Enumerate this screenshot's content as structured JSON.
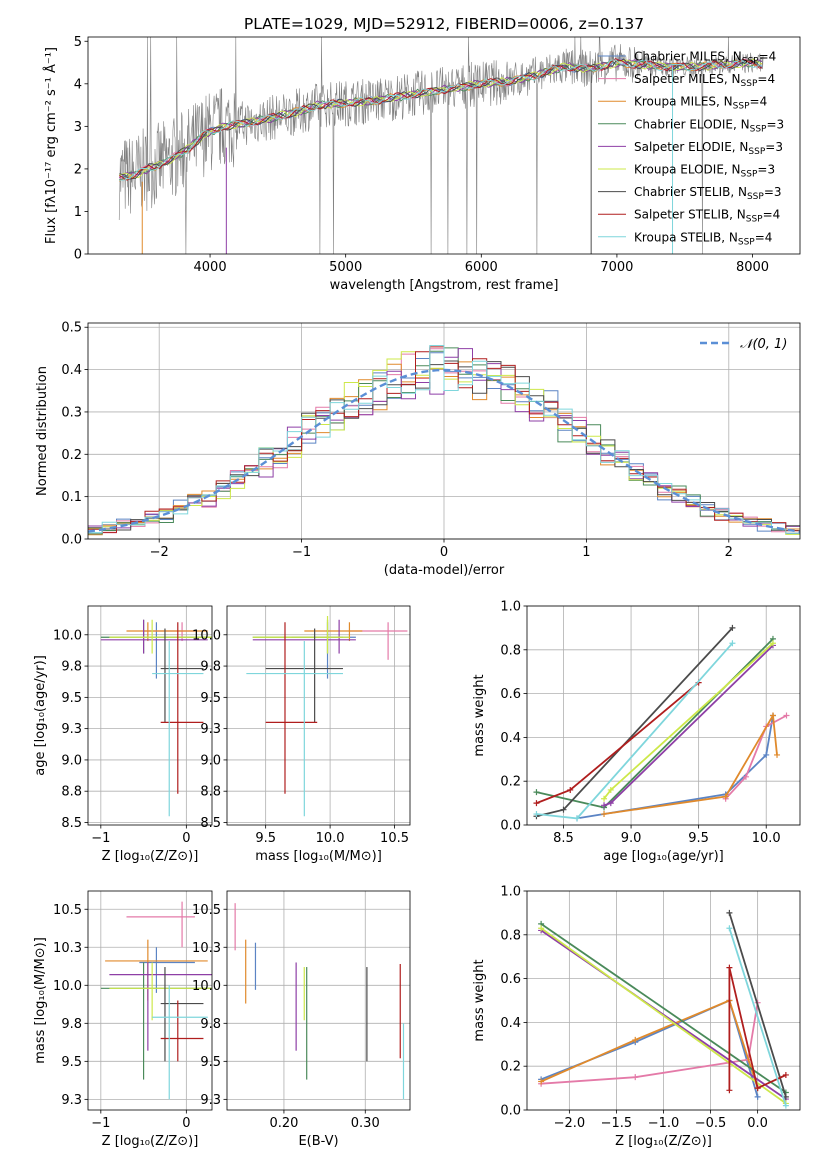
{
  "figure": {
    "title": "PLATE=1029, MJD=52912, FIBERID=0006, z=0.137"
  },
  "chart_data": [
    {
      "id": "spectrum",
      "type": "line",
      "xlabel": "wavelength [Angstrom, rest frame]",
      "ylabel": "Flux [fλ10⁻¹⁷ erg cm⁻² s⁻¹ Å⁻¹]",
      "xlim": [
        3100,
        8350
      ],
      "ylim": [
        0,
        5.1
      ],
      "xticks": [
        4000,
        5000,
        6000,
        7000,
        8000
      ],
      "yticks": [
        0,
        1,
        2,
        3,
        4,
        5
      ],
      "grid": false,
      "legend_position": "upper-right",
      "data_series": {
        "name": "",
        "color": "#808080"
      },
      "continuum_x": [
        3330,
        3450,
        3500,
        3700,
        3850,
        3950,
        4100,
        4300,
        4600,
        4800,
        5000,
        5200,
        5400,
        5600,
        5800,
        6000,
        6200,
        6400,
        6600,
        6800,
        7000,
        7200,
        7400,
        7600,
        7800,
        8000,
        8080
      ],
      "continuum_y": [
        1.8,
        1.85,
        1.95,
        2.2,
        2.5,
        2.8,
        3.0,
        3.1,
        3.3,
        3.5,
        3.55,
        3.6,
        3.7,
        3.8,
        3.9,
        4.0,
        4.05,
        4.2,
        4.4,
        4.35,
        4.5,
        4.45,
        4.4,
        4.4,
        4.45,
        4.5,
        4.45
      ],
      "series": [
        {
          "name": "Chabrier MILES, NSSP=4",
          "label": "Chabrier MILES, N",
          "sub": "SSP",
          "suffix": "=4",
          "color": "#5b84c4"
        },
        {
          "name": "Salpeter MILES, NSSP=4",
          "label": "Salpeter MILES, N",
          "sub": "SSP",
          "suffix": "=4",
          "color": "#e47aa8"
        },
        {
          "name": "Kroupa MILES, NSSP=4",
          "label": "Kroupa MILES, N",
          "sub": "SSP",
          "suffix": "=4",
          "color": "#e08a2c"
        },
        {
          "name": "Chabrier ELODIE, NSSP=3",
          "label": "Chabrier ELODIE, N",
          "sub": "SSP",
          "suffix": "=3",
          "color": "#4a8a5a"
        },
        {
          "name": "Salpeter ELODIE, NSSP=3",
          "label": "Salpeter ELODIE, N",
          "sub": "SSP",
          "suffix": "=3",
          "color": "#8e3fa6"
        },
        {
          "name": "Kroupa ELODIE, NSSP=3",
          "label": "Kroupa ELODIE, N",
          "sub": "SSP",
          "suffix": "=3",
          "color": "#cde84a"
        },
        {
          "name": "Chabrier STELIB, NSSP=3",
          "label": "Chabrier STELIB, N",
          "sub": "SSP",
          "suffix": "=3",
          "color": "#4b4b4b"
        },
        {
          "name": "Salpeter STELIB, NSSP=4",
          "label": "Salpeter STELIB, N",
          "sub": "SSP",
          "suffix": "=4",
          "color": "#b01e1e"
        },
        {
          "name": "Kroupa STELIB, NSSP=4",
          "label": "Kroupa STELIB, N",
          "sub": "SSP",
          "suffix": "=4",
          "color": "#7fd6dc"
        }
      ]
    },
    {
      "id": "residuals",
      "type": "step-histogram",
      "xlabel": "(data-model)/error",
      "ylabel": "Normed distribution",
      "xlim": [
        -2.5,
        2.5
      ],
      "ylim": [
        0,
        0.51
      ],
      "xticks": [
        -2,
        -1,
        0,
        1,
        2
      ],
      "yticks": [
        0,
        0.1,
        0.2,
        0.3,
        0.4,
        0.5
      ],
      "grid": true,
      "legend": {
        "label": "𝒩(0, 1)",
        "position": "upper-right",
        "color": "#5b8fd6"
      },
      "gaussian": {
        "mean": 0,
        "sigma": 1
      }
    },
    {
      "id": "age_vs_Z",
      "type": "errorbar",
      "xlabel": "Z [log₁₀(Z/Z⊙)]",
      "ylabel": "age  [log₁₀(age/yr)]",
      "xlim": [
        -1.15,
        0.3
      ],
      "ylim": [
        8.48,
        10.23
      ],
      "xticks": [
        -1,
        0
      ],
      "yticks": [
        8.5,
        8.75,
        9.0,
        9.25,
        9.5,
        9.75,
        10.0
      ],
      "grid": true,
      "points": [
        {
          "x": -0.35,
          "y": 9.98,
          "xlo": -0.35,
          "xhi": 0.25,
          "ylo": 9.65,
          "yhi": 10.1
        },
        {
          "x": -0.05,
          "y": 10.03,
          "xlo": -0.5,
          "xhi": 0.1,
          "ylo": 9.95,
          "yhi": 10.1
        },
        {
          "x": -0.45,
          "y": 10.03,
          "xlo": -0.7,
          "xhi": 0.25,
          "ylo": 9.95,
          "yhi": 10.1
        },
        {
          "x": -0.5,
          "y": 9.98,
          "xlo": -1.0,
          "xhi": 0.3,
          "ylo": 9.85,
          "yhi": 10.12
        },
        {
          "x": -0.5,
          "y": 9.96,
          "xlo": -1.0,
          "xhi": 0.25,
          "ylo": 9.85,
          "yhi": 10.12
        },
        {
          "x": -0.4,
          "y": 9.98,
          "xlo": -0.9,
          "xhi": 0.3,
          "ylo": 9.85,
          "yhi": 10.12
        },
        {
          "x": -0.25,
          "y": 9.73,
          "xlo": -0.3,
          "xhi": 0.2,
          "ylo": 9.3,
          "yhi": 10.05
        },
        {
          "x": -0.1,
          "y": 9.3,
          "xlo": -0.3,
          "xhi": 0.2,
          "ylo": 8.73,
          "yhi": 10.1
        },
        {
          "x": -0.2,
          "y": 9.69,
          "xlo": -0.4,
          "xhi": 0.2,
          "ylo": 8.55,
          "yhi": 9.95
        }
      ]
    },
    {
      "id": "age_vs_mass",
      "type": "errorbar",
      "xlabel": "mass [log₁₀(M/M⊙)]",
      "ylabel": "",
      "xlim": [
        9.2,
        10.62
      ],
      "ylim": [
        8.48,
        10.23
      ],
      "xticks": [
        9.5,
        10.0,
        10.5
      ],
      "yticks": [
        8.5,
        8.75,
        9.0,
        9.25,
        9.5,
        9.75,
        10.0
      ],
      "grid": true,
      "points": [
        {
          "x": 9.98,
          "y": 9.98,
          "xlo": 9.7,
          "xhi": 10.2,
          "ylo": 9.65,
          "yhi": 10.1
        },
        {
          "x": 10.45,
          "y": 10.03,
          "xlo": 10.15,
          "xhi": 10.6,
          "ylo": 9.8,
          "yhi": 10.1
        },
        {
          "x": 10.15,
          "y": 10.03,
          "xlo": 9.8,
          "xhi": 10.25,
          "ylo": 9.95,
          "yhi": 10.1
        },
        {
          "x": 9.98,
          "y": 9.98,
          "xlo": 9.4,
          "xhi": 10.1,
          "ylo": 9.85,
          "yhi": 10.12
        },
        {
          "x": 10.07,
          "y": 9.96,
          "xlo": 9.4,
          "xhi": 10.2,
          "ylo": 9.85,
          "yhi": 10.12
        },
        {
          "x": 9.98,
          "y": 9.98,
          "xlo": 9.4,
          "xhi": 10.15,
          "ylo": 9.85,
          "yhi": 10.15
        },
        {
          "x": 9.88,
          "y": 9.73,
          "xlo": 9.5,
          "xhi": 10.1,
          "ylo": 9.3,
          "yhi": 10.05
        },
        {
          "x": 9.65,
          "y": 9.3,
          "xlo": 9.5,
          "xhi": 9.9,
          "ylo": 8.73,
          "yhi": 10.1
        },
        {
          "x": 9.8,
          "y": 9.69,
          "xlo": 9.35,
          "xhi": 10.1,
          "ylo": 8.55,
          "yhi": 9.95
        }
      ]
    },
    {
      "id": "massweight_vs_age",
      "type": "line",
      "xlabel": "age  [log₁₀(age/yr)]",
      "ylabel": "mass weight",
      "xlim": [
        8.23,
        10.25
      ],
      "ylim": [
        0,
        1.0
      ],
      "xticks": [
        8.5,
        9.0,
        9.5,
        10.0
      ],
      "yticks": [
        0.0,
        0.2,
        0.4,
        0.6,
        0.8,
        1.0
      ],
      "grid": true,
      "series": [
        {
          "x": [
            8.6,
            9.7,
            10.0,
            10.05
          ],
          "y": [
            0.03,
            0.14,
            0.32,
            0.5
          ]
        },
        {
          "x": [
            9.7,
            9.85,
            10.0,
            10.15
          ],
          "y": [
            0.12,
            0.22,
            0.45,
            0.5
          ]
        },
        {
          "x": [
            8.8,
            9.7,
            10.05,
            10.08
          ],
          "y": [
            0.05,
            0.13,
            0.5,
            0.32
          ]
        },
        {
          "x": [
            8.3,
            8.8,
            10.05
          ],
          "y": [
            0.15,
            0.08,
            0.85
          ]
        },
        {
          "x": [
            8.8,
            8.85,
            10.05
          ],
          "y": [
            0.09,
            0.1,
            0.82
          ]
        },
        {
          "x": [
            8.8,
            8.85,
            10.05
          ],
          "y": [
            0.12,
            0.16,
            0.83
          ]
        },
        {
          "x": [
            8.3,
            8.5,
            9.75
          ],
          "y": [
            0.04,
            0.07,
            0.9
          ]
        },
        {
          "x": [
            8.3,
            8.55,
            9.5
          ],
          "y": [
            0.1,
            0.16,
            0.65
          ]
        },
        {
          "x": [
            8.3,
            8.6,
            9.75
          ],
          "y": [
            0.05,
            0.03,
            0.83
          ]
        }
      ]
    },
    {
      "id": "mass_vs_Z",
      "type": "errorbar",
      "xlabel": "Z [log₁₀(Z/Z⊙)]",
      "ylabel": "mass [log₁₀(M/M⊙)]",
      "xlim": [
        -1.15,
        0.3
      ],
      "ylim": [
        9.18,
        10.62
      ],
      "xticks": [
        -1,
        0
      ],
      "yticks": [
        9.25,
        9.5,
        9.75,
        10.0,
        10.25,
        10.5
      ],
      "grid": true,
      "points": [
        {
          "x": -0.35,
          "y": 10.15,
          "xlo": -0.55,
          "xhi": 0.1,
          "ylo": 9.95,
          "yhi": 10.25
        },
        {
          "x": -0.05,
          "y": 10.45,
          "xlo": -0.7,
          "xhi": 0.1,
          "ylo": 10.25,
          "yhi": 10.55
        },
        {
          "x": -0.45,
          "y": 10.16,
          "xlo": -0.95,
          "xhi": 0.25,
          "ylo": 9.9,
          "yhi": 10.3
        },
        {
          "x": -0.5,
          "y": 9.98,
          "xlo": -1.0,
          "xhi": 0.3,
          "ylo": 9.38,
          "yhi": 10.15
        },
        {
          "x": -0.45,
          "y": 10.07,
          "xlo": -0.9,
          "xhi": 0.3,
          "ylo": 9.57,
          "yhi": 10.15
        },
        {
          "x": -0.4,
          "y": 9.98,
          "xlo": -0.9,
          "xhi": 0.3,
          "ylo": 9.77,
          "yhi": 10.15
        },
        {
          "x": -0.25,
          "y": 9.88,
          "xlo": -0.3,
          "xhi": 0.2,
          "ylo": 9.5,
          "yhi": 10.12
        },
        {
          "x": -0.1,
          "y": 9.65,
          "xlo": -0.3,
          "xhi": 0.2,
          "ylo": 9.5,
          "yhi": 9.9
        },
        {
          "x": -0.2,
          "y": 9.79,
          "xlo": -0.4,
          "xhi": 0.25,
          "ylo": 9.25,
          "yhi": 10.0
        }
      ]
    },
    {
      "id": "mass_vs_ebv",
      "type": "errorbar",
      "xlabel": "E(B-V)",
      "ylabel": "",
      "xlim": [
        0.13,
        0.355
      ],
      "ylim": [
        9.18,
        10.62
      ],
      "xticks": [
        0.2,
        0.3
      ],
      "yticks": [
        9.25,
        9.5,
        9.75,
        10.0,
        10.25,
        10.5
      ],
      "grid": true,
      "points": [
        {
          "x": 0.165,
          "y": 10.12,
          "ylo": 9.97,
          "yhi": 10.28
        },
        {
          "x": 0.14,
          "y": 10.39,
          "ylo": 10.23,
          "yhi": 10.54
        },
        {
          "x": 0.153,
          "y": 10.1,
          "ylo": 9.88,
          "yhi": 10.3
        },
        {
          "x": 0.228,
          "y": 9.75,
          "ylo": 9.38,
          "yhi": 10.12
        },
        {
          "x": 0.215,
          "y": 9.85,
          "ylo": 9.57,
          "yhi": 10.15
        },
        {
          "x": 0.225,
          "y": 9.95,
          "ylo": 9.77,
          "yhi": 10.12
        },
        {
          "x": 0.302,
          "y": 9.8,
          "ylo": 9.5,
          "yhi": 10.12
        },
        {
          "x": 0.343,
          "y": 9.83,
          "ylo": 9.52,
          "yhi": 10.14
        },
        {
          "x": 0.347,
          "y": 9.5,
          "ylo": 9.25,
          "yhi": 9.75
        }
      ]
    },
    {
      "id": "massweight_vs_Z",
      "type": "line",
      "xlabel": "Z [log₁₀(Z/Z⊙)]",
      "ylabel": "mass weight",
      "xlim": [
        -2.45,
        0.45
      ],
      "ylim": [
        0,
        1.0
      ],
      "xticks": [
        -2.0,
        -1.5,
        -1.0,
        -0.5,
        0.0
      ],
      "yticks": [
        0.0,
        0.2,
        0.4,
        0.6,
        0.8,
        1.0
      ],
      "grid": true,
      "series": [
        {
          "x": [
            -2.3,
            -1.3,
            -0.3,
            0.0
          ],
          "y": [
            0.14,
            0.31,
            0.5,
            0.06
          ]
        },
        {
          "x": [
            -2.3,
            -1.3,
            -0.1,
            0.0
          ],
          "y": [
            0.12,
            0.15,
            0.23,
            0.49
          ]
        },
        {
          "x": [
            -2.3,
            -1.3,
            -0.3,
            0.0
          ],
          "y": [
            0.13,
            0.32,
            0.5,
            0.1
          ]
        },
        {
          "x": [
            -2.3,
            0.3
          ],
          "y": [
            0.85,
            0.08
          ]
        },
        {
          "x": [
            -2.3,
            0.3
          ],
          "y": [
            0.82,
            0.05
          ]
        },
        {
          "x": [
            -2.3,
            0.3
          ],
          "y": [
            0.83,
            0.03
          ]
        },
        {
          "x": [
            -0.3,
            0.3
          ],
          "y": [
            0.9,
            0.06
          ]
        },
        {
          "x": [
            -0.3,
            -0.3,
            0.0,
            0.3
          ],
          "y": [
            0.09,
            0.65,
            0.1,
            0.16
          ]
        },
        {
          "x": [
            -0.3,
            0.3
          ],
          "y": [
            0.83,
            0.02
          ]
        }
      ]
    }
  ]
}
